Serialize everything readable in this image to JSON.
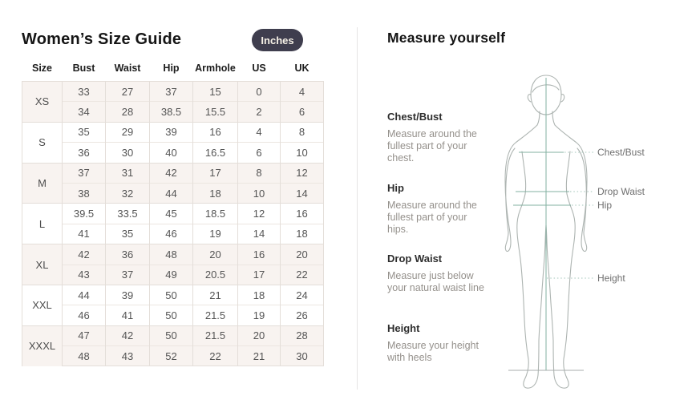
{
  "left": {
    "title": "Women’s Size Guide",
    "unit_toggle_label": "Inches",
    "table": {
      "headers": [
        "Size",
        "Bust",
        "Waist",
        "Hip",
        "Armhole",
        "US",
        "UK"
      ],
      "groups": [
        {
          "size": "XS",
          "rows": [
            [
              "33",
              "27",
              "37",
              "15",
              "0",
              "4"
            ],
            [
              "34",
              "28",
              "38.5",
              "15.5",
              "2",
              "6"
            ]
          ]
        },
        {
          "size": "S",
          "rows": [
            [
              "35",
              "29",
              "39",
              "16",
              "4",
              "8"
            ],
            [
              "36",
              "30",
              "40",
              "16.5",
              "6",
              "10"
            ]
          ]
        },
        {
          "size": "M",
          "rows": [
            [
              "37",
              "31",
              "42",
              "17",
              "8",
              "12"
            ],
            [
              "38",
              "32",
              "44",
              "18",
              "10",
              "14"
            ]
          ]
        },
        {
          "size": "L",
          "rows": [
            [
              "39.5",
              "33.5",
              "45",
              "18.5",
              "12",
              "16"
            ],
            [
              "41",
              "35",
              "46",
              "19",
              "14",
              "18"
            ]
          ]
        },
        {
          "size": "XL",
          "rows": [
            [
              "42",
              "36",
              "48",
              "20",
              "16",
              "20"
            ],
            [
              "43",
              "37",
              "49",
              "20.5",
              "17",
              "22"
            ]
          ]
        },
        {
          "size": "XXL",
          "rows": [
            [
              "44",
              "39",
              "50",
              "21",
              "18",
              "24"
            ],
            [
              "46",
              "41",
              "50",
              "21.5",
              "19",
              "26"
            ]
          ]
        },
        {
          "size": "XXXL",
          "rows": [
            [
              "47",
              "42",
              "50",
              "21.5",
              "20",
              "28"
            ],
            [
              "48",
              "43",
              "52",
              "22",
              "21",
              "30"
            ]
          ]
        }
      ]
    }
  },
  "right": {
    "title": "Measure yourself",
    "sections": [
      {
        "label": "Chest/Bust",
        "description": "Measure around the fullest part of your chest."
      },
      {
        "label": "Hip",
        "description": "Measure around the fullest part of your hips."
      },
      {
        "label": "Drop Waist",
        "description": "Measure just below your natural waist line"
      },
      {
        "label": "Height",
        "description": "Measure your height with heels"
      }
    ],
    "figure_labels": {
      "chest": "Chest/Bust",
      "drop_waist": "Drop Waist",
      "hip": "Hip",
      "height": "Height"
    }
  },
  "colors": {
    "pill_background": "#3f3e4e",
    "pill_text": "#f6f1e6",
    "row_shade": "#f8f3f0",
    "table_border": "#e4ded9",
    "measure_line": "#83b1a2",
    "figure_outline": "#adb4b1",
    "heading_text": "#161616",
    "body_text": "#545454",
    "muted_text": "#95918c"
  }
}
